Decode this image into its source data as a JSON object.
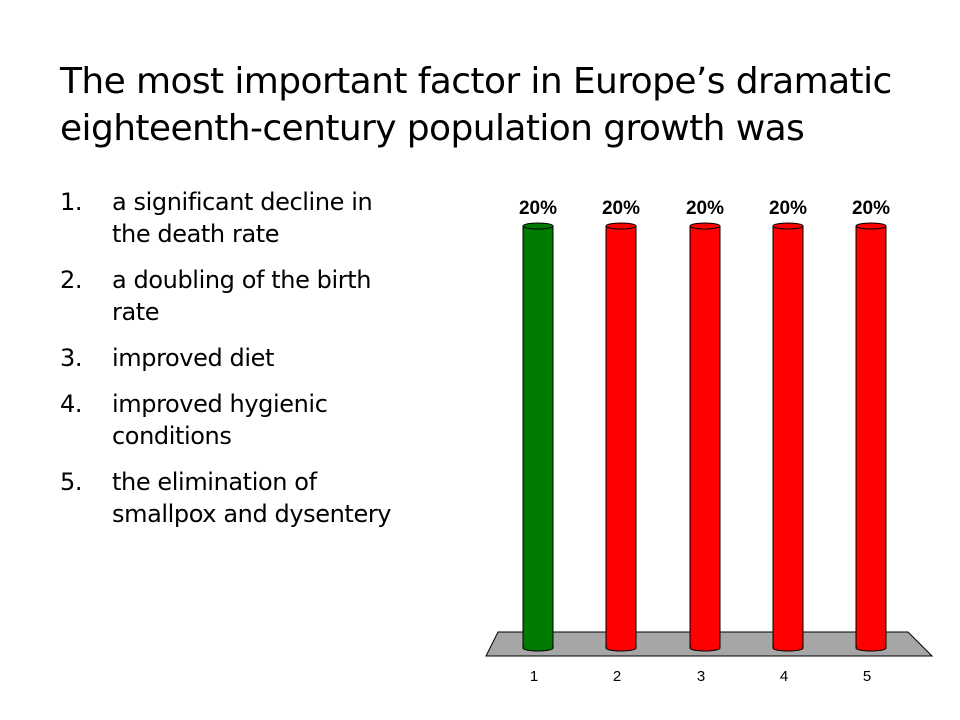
{
  "title": {
    "lines": [
      "The most important factor in Europe’s dramatic",
      "eighteenth-century population growth was"
    ]
  },
  "options": [
    {
      "number": "1.",
      "lines": [
        "a significant decline in",
        "the death rate"
      ]
    },
    {
      "number": "2.",
      "lines": [
        "a doubling of the birth",
        "rate"
      ]
    },
    {
      "number": "3.",
      "lines": [
        "improved diet"
      ]
    },
    {
      "number": "4.",
      "lines": [
        "improved hygienic",
        "conditions"
      ]
    },
    {
      "number": "5.",
      "lines": [
        "the elimination of",
        "smallpox and dysentery"
      ]
    }
  ],
  "chart_data": {
    "type": "bar",
    "categories": [
      "1",
      "2",
      "3",
      "4",
      "5"
    ],
    "values": [
      20,
      20,
      20,
      20,
      20
    ],
    "value_labels": [
      "20%",
      "20%",
      "20%",
      "20%",
      "20%"
    ],
    "bar_colors": [
      "#007A00",
      "#FF0000",
      "#FF0000",
      "#FF0000",
      "#FF0000"
    ],
    "ylim": [
      0,
      20
    ],
    "title": "",
    "xlabel": "",
    "ylabel": "",
    "grid": false,
    "floor_color": "#A6A6A6"
  }
}
